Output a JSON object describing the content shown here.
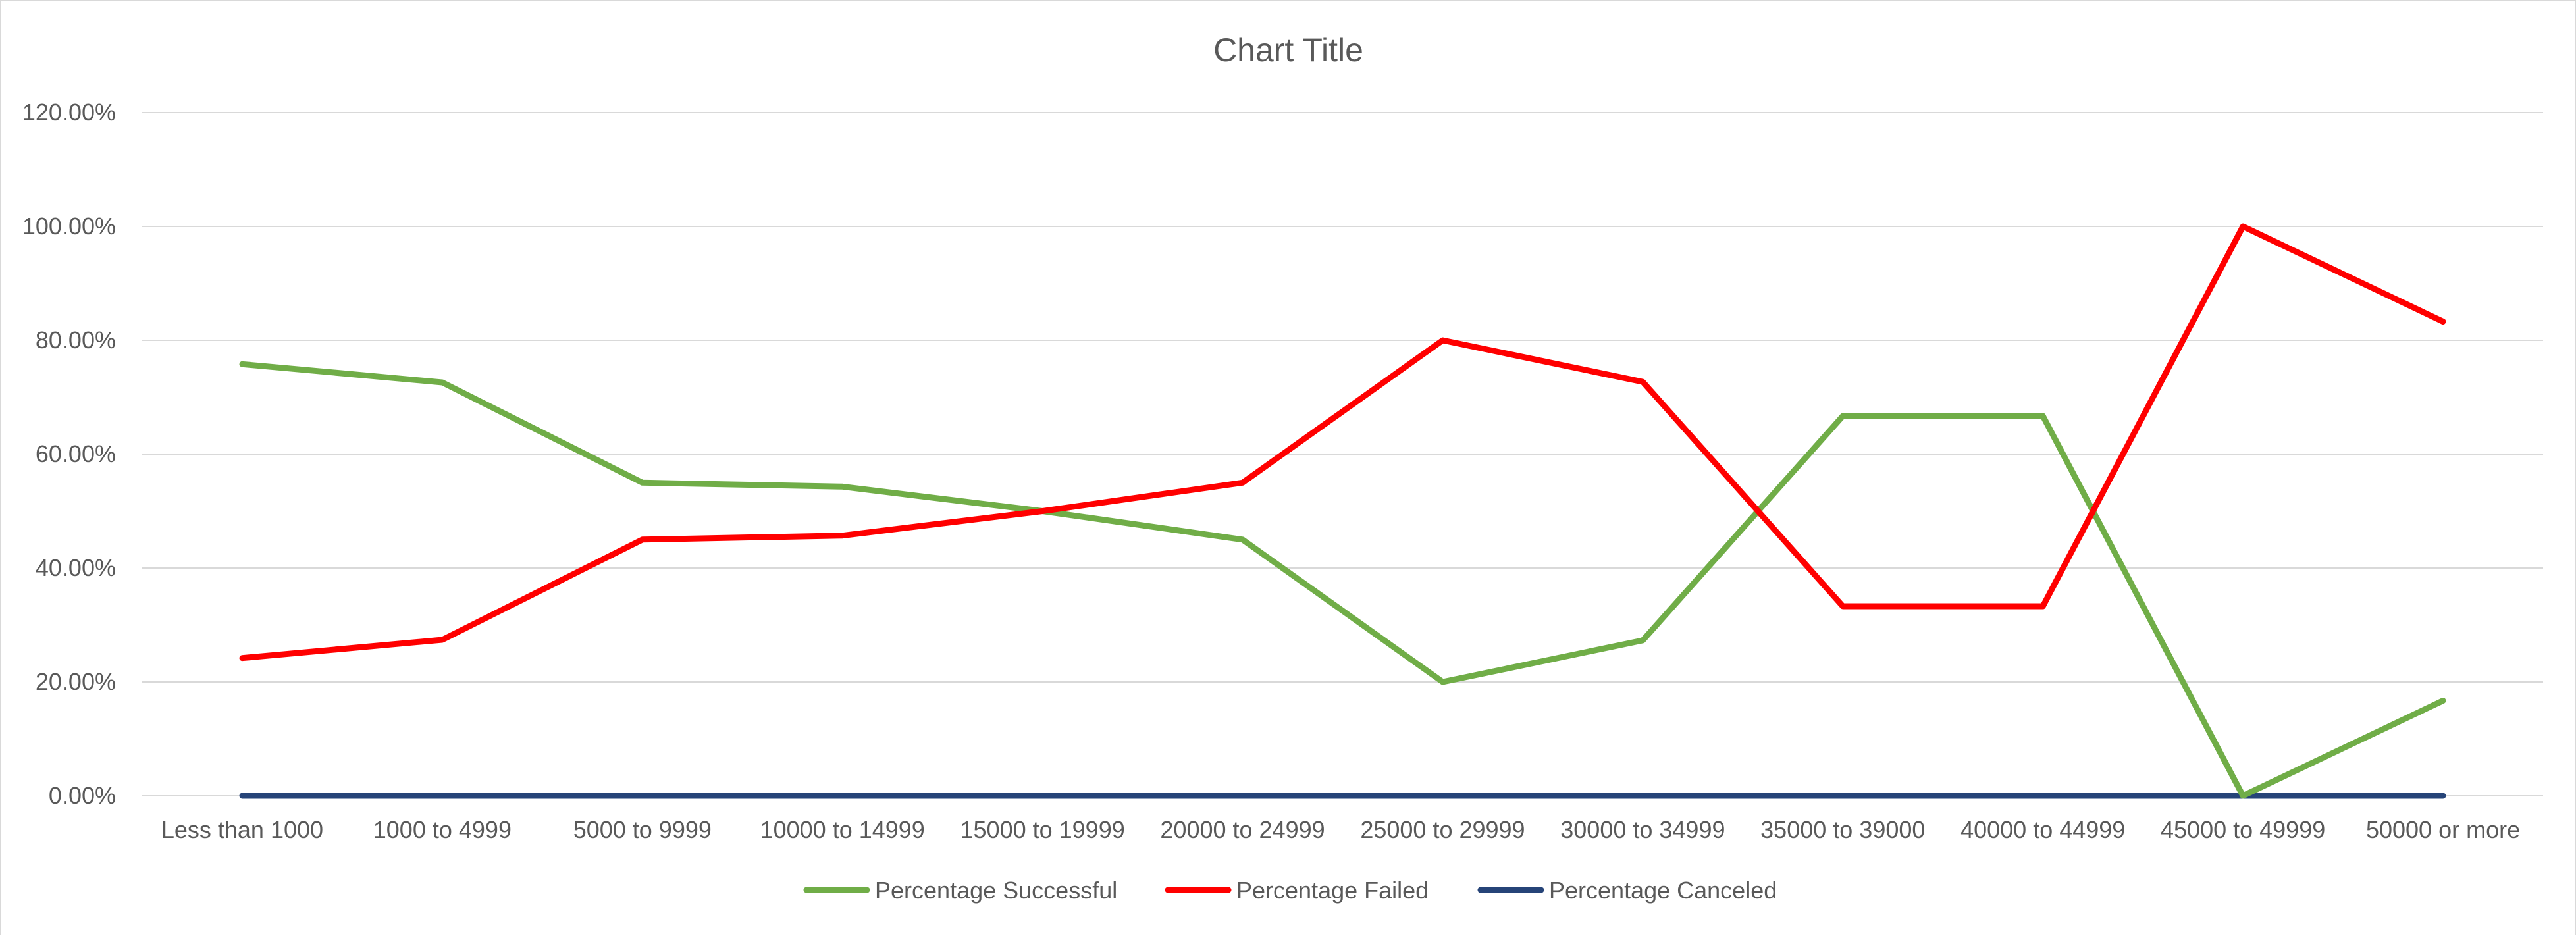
{
  "chart_data": {
    "type": "line",
    "title": "Chart Title",
    "xlabel": "",
    "ylabel": "",
    "ylim": [
      0,
      1.2
    ],
    "ytick_values": [
      0,
      0.2,
      0.4,
      0.6,
      0.8,
      1.0,
      1.2
    ],
    "ytick_labels": [
      "0.00%",
      "20.00%",
      "40.00%",
      "60.00%",
      "80.00%",
      "100.00%",
      "120.00%"
    ],
    "grid": true,
    "legend_position": "bottom",
    "categories": [
      "Less than 1000",
      "1000 to 4999",
      "5000 to 9999",
      "10000 to 14999",
      "15000 to 19999",
      "20000 to 24999",
      "25000 to 29999",
      "30000 to 34999",
      "35000 to 39000",
      "40000 to 44999",
      "45000 to 49999",
      "50000 or more"
    ],
    "series": [
      {
        "name": "Percentage Successful",
        "color": "#70AD47",
        "values": [
          0.758,
          0.726,
          0.55,
          0.543,
          0.5,
          0.45,
          0.2,
          0.273,
          0.667,
          0.667,
          0.0,
          0.167
        ]
      },
      {
        "name": "Percentage Failed",
        "color": "#FF0000",
        "values": [
          0.242,
          0.274,
          0.45,
          0.457,
          0.5,
          0.55,
          0.8,
          0.727,
          0.333,
          0.333,
          1.0,
          0.833
        ]
      },
      {
        "name": "Percentage Canceled",
        "color": "#264478",
        "values": [
          0,
          0,
          0,
          0,
          0,
          0,
          0,
          0,
          0,
          0,
          0,
          0
        ]
      }
    ],
    "colors": {
      "grid": "#d9d9d9",
      "text": "#595959"
    }
  }
}
